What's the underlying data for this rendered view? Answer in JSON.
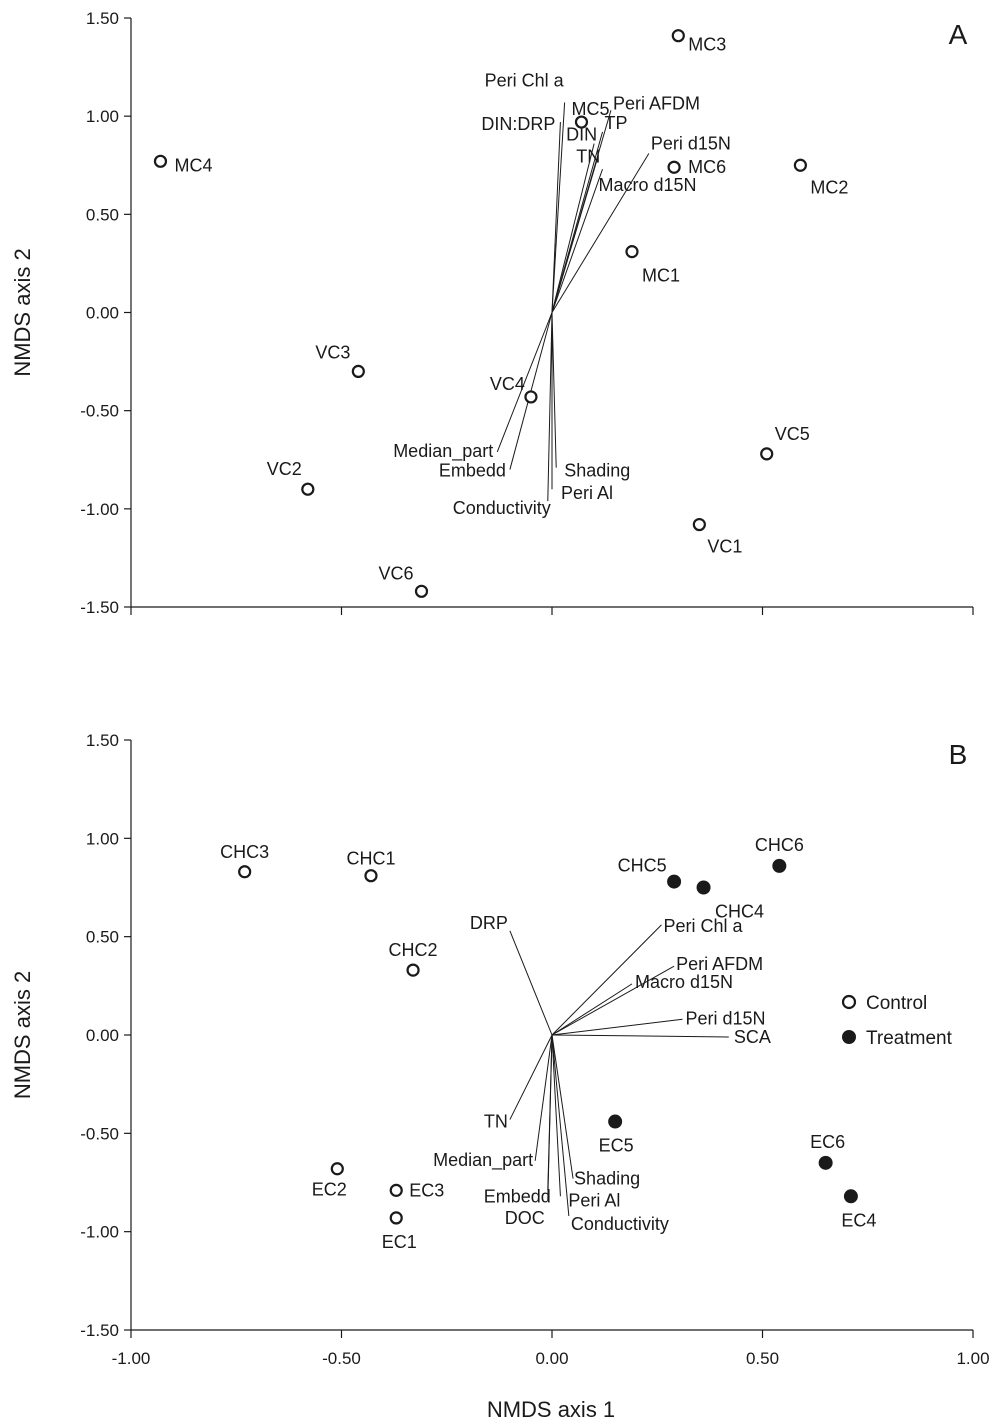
{
  "chart_data": [
    {
      "type": "scatter",
      "panel_label": "A",
      "xlim": [
        -1.0,
        1.0
      ],
      "ylim": [
        -1.5,
        1.5
      ],
      "xticks": [
        "-1.00",
        "-0.50",
        "0.00",
        "0.50",
        "1.00"
      ],
      "yticks": [
        "1.50",
        "1.00",
        "0.50",
        "0.00",
        "-0.50",
        "-1.00",
        "-1.50"
      ],
      "xlabel": "",
      "ylabel": "NMDS axis 2",
      "points": [
        {
          "label": "MC3",
          "x": 0.3,
          "y": 1.41,
          "group": "Control"
        },
        {
          "label": "MC5",
          "x": 0.07,
          "y": 0.97,
          "group": "Control"
        },
        {
          "label": "MC4",
          "x": -0.93,
          "y": 0.77,
          "group": "Control"
        },
        {
          "label": "MC6",
          "x": 0.29,
          "y": 0.74,
          "group": "Control"
        },
        {
          "label": "MC2",
          "x": 0.59,
          "y": 0.75,
          "group": "Control"
        },
        {
          "label": "MC1",
          "x": 0.19,
          "y": 0.31,
          "group": "Control"
        },
        {
          "label": "VC3",
          "x": -0.46,
          "y": -0.3,
          "group": "Control"
        },
        {
          "label": "VC4",
          "x": -0.05,
          "y": -0.43,
          "group": "Control"
        },
        {
          "label": "VC5",
          "x": 0.51,
          "y": -0.72,
          "group": "Control"
        },
        {
          "label": "VC2",
          "x": -0.58,
          "y": -0.9,
          "group": "Control"
        },
        {
          "label": "VC1",
          "x": 0.35,
          "y": -1.08,
          "group": "Control"
        },
        {
          "label": "VC6",
          "x": -0.31,
          "y": -1.42,
          "group": "Control"
        }
      ],
      "vectors": [
        {
          "label": "Peri Chl a",
          "x": 0.03,
          "y": 1.07
        },
        {
          "label": "DIN:DRP",
          "x": 0.02,
          "y": 0.97
        },
        {
          "label": "Peri AFDM",
          "x": 0.14,
          "y": 1.03
        },
        {
          "label": "TP",
          "x": 0.12,
          "y": 0.92
        },
        {
          "label": "DIN",
          "x": 0.1,
          "y": 0.86
        },
        {
          "label": "TN",
          "x": 0.11,
          "y": 0.8
        },
        {
          "label": "Macro d15N",
          "x": 0.12,
          "y": 0.73
        },
        {
          "label": "Peri d15N",
          "x": 0.23,
          "y": 0.81
        },
        {
          "label": "Median_part",
          "x": -0.13,
          "y": -0.71
        },
        {
          "label": "Embedd",
          "x": -0.1,
          "y": -0.8
        },
        {
          "label": "Shading",
          "x": 0.01,
          "y": -0.79
        },
        {
          "label": "Peri Al",
          "x": 0.0,
          "y": -0.9
        },
        {
          "label": "Conductivity",
          "x": -0.01,
          "y": -0.96
        }
      ]
    },
    {
      "type": "scatter",
      "panel_label": "B",
      "xlim": [
        -1.0,
        1.0
      ],
      "ylim": [
        -1.5,
        1.5
      ],
      "xticks": [
        "-1.00",
        "-0.50",
        "0.00",
        "0.50",
        "1.00"
      ],
      "yticks": [
        "1.50",
        "1.00",
        "0.50",
        "0.00",
        "-0.50",
        "-1.00",
        "-1.50"
      ],
      "xlabel": "NMDS axis 1",
      "ylabel": "NMDS axis 2",
      "legend": {
        "position": "right",
        "entries": [
          {
            "label": "Control",
            "marker": "open"
          },
          {
            "label": "Treatment",
            "marker": "filled"
          }
        ]
      },
      "points": [
        {
          "label": "CHC3",
          "x": -0.73,
          "y": 0.83,
          "group": "Control"
        },
        {
          "label": "CHC1",
          "x": -0.43,
          "y": 0.81,
          "group": "Control"
        },
        {
          "label": "CHC2",
          "x": -0.33,
          "y": 0.33,
          "group": "Control"
        },
        {
          "label": "CHC5",
          "x": 0.29,
          "y": 0.78,
          "group": "Treatment"
        },
        {
          "label": "CHC4",
          "x": 0.36,
          "y": 0.75,
          "group": "Treatment"
        },
        {
          "label": "CHC6",
          "x": 0.54,
          "y": 0.86,
          "group": "Treatment"
        },
        {
          "label": "EC5",
          "x": 0.15,
          "y": -0.44,
          "group": "Treatment"
        },
        {
          "label": "EC6",
          "x": 0.65,
          "y": -0.65,
          "group": "Treatment"
        },
        {
          "label": "EC4",
          "x": 0.71,
          "y": -0.82,
          "group": "Treatment"
        },
        {
          "label": "EC2",
          "x": -0.51,
          "y": -0.68,
          "group": "Control"
        },
        {
          "label": "EC3",
          "x": -0.37,
          "y": -0.79,
          "group": "Control"
        },
        {
          "label": "EC1",
          "x": -0.37,
          "y": -0.93,
          "group": "Control"
        }
      ],
      "vectors": [
        {
          "label": "DRP",
          "x": -0.1,
          "y": 0.53
        },
        {
          "label": "Peri Chl a",
          "x": 0.26,
          "y": 0.56
        },
        {
          "label": "Peri AFDM",
          "x": 0.29,
          "y": 0.35
        },
        {
          "label": "Macro d15N",
          "x": 0.19,
          "y": 0.26
        },
        {
          "label": "Peri d15N",
          "x": 0.31,
          "y": 0.08
        },
        {
          "label": "SCA",
          "x": 0.42,
          "y": -0.01
        },
        {
          "label": "TN",
          "x": -0.1,
          "y": -0.43
        },
        {
          "label": "Median_part",
          "x": -0.04,
          "y": -0.64
        },
        {
          "label": "Shading",
          "x": 0.05,
          "y": -0.73
        },
        {
          "label": "Embedd",
          "x": -0.01,
          "y": -0.79
        },
        {
          "label": "Peri Al",
          "x": 0.02,
          "y": -0.82
        },
        {
          "label": "DOC",
          "x": -0.01,
          "y": -0.84
        },
        {
          "label": "Conductivity",
          "x": 0.04,
          "y": -0.92
        }
      ]
    }
  ]
}
